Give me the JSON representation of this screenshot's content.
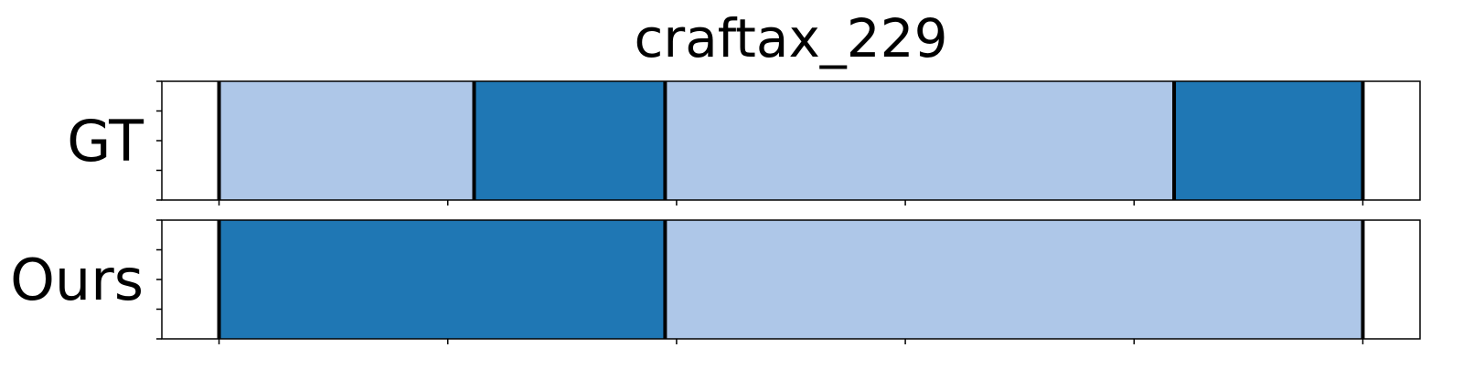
{
  "chart_data": {
    "type": "segmentation-timeline",
    "title": "craftax_229",
    "xlim": [
      0,
      110
    ],
    "x_ticks": [
      5,
      25,
      45,
      65,
      85,
      105
    ],
    "y_ticks_per_row": 5,
    "grid": false,
    "legend": "none",
    "colors": {
      "light": "#aec7e8",
      "dark": "#1f77b4",
      "boundary": "#000000"
    },
    "rows": [
      {
        "label": "GT",
        "segments": [
          {
            "start": 5,
            "end": 27.3,
            "color": "light"
          },
          {
            "start": 27.3,
            "end": 44,
            "color": "dark"
          },
          {
            "start": 44,
            "end": 88.5,
            "color": "light"
          },
          {
            "start": 88.5,
            "end": 105,
            "color": "dark"
          }
        ]
      },
      {
        "label": "Ours",
        "segments": [
          {
            "start": 5,
            "end": 44,
            "color": "dark"
          },
          {
            "start": 44,
            "end": 105,
            "color": "light"
          }
        ]
      }
    ]
  }
}
